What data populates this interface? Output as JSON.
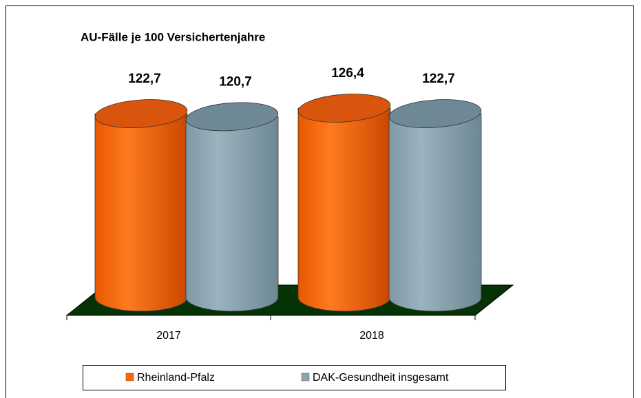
{
  "chart_data": {
    "type": "cylinder-bar",
    "title": "AU-Fälle je 100 Versichertenjahre",
    "categories": [
      "2017",
      "2018"
    ],
    "series": [
      {
        "name": "Rheinland-Pfalz",
        "color": "#ff6600",
        "values": [
          122.7,
          126.4
        ],
        "value_labels": [
          "122,7",
          "126,4"
        ]
      },
      {
        "name": "DAK-Gesundheit insgesamt",
        "color": "#8ca5b1",
        "values": [
          120.7,
          122.7
        ],
        "value_labels": [
          "120,7",
          "122,7"
        ]
      }
    ],
    "legend": "bottom"
  }
}
